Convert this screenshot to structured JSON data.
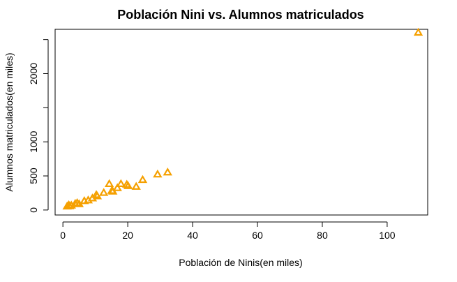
{
  "chart_data": {
    "type": "scatter",
    "title": "Población Nini vs. Alumnos matriculados",
    "xlabel": "Población de Ninis(en miles)",
    "ylabel": "Alumnos matriculados(en miles)",
    "xlim": [
      -2.4,
      112.5
    ],
    "ylim": [
      -73,
      2650
    ],
    "xticks": [
      0,
      20,
      40,
      60,
      80,
      100
    ],
    "xtick_labels": [
      "0",
      "20",
      "40",
      "60",
      "80",
      "100"
    ],
    "yticks": [
      0,
      500,
      1000,
      1500,
      2000,
      2500
    ],
    "ytick_labels": [
      "0",
      "500",
      "1000",
      "",
      "2000",
      ""
    ],
    "marker": "triangle-open",
    "grid": false,
    "legend": "none",
    "color": "#f5a000",
    "x": [
      1.3,
      1.8,
      2.1,
      2.6,
      3.8,
      4.4,
      5.0,
      6.6,
      7.8,
      9.1,
      10.3,
      10.6,
      12.6,
      14.3,
      15.1,
      15.4,
      16.8,
      17.9,
      19.7,
      20.1,
      22.6,
      24.6,
      29.2,
      32.3,
      109.6
    ],
    "y": [
      50,
      70,
      55,
      65,
      90,
      100,
      85,
      130,
      140,
      170,
      220,
      200,
      250,
      380,
      280,
      270,
      320,
      380,
      370,
      350,
      340,
      440,
      520,
      550,
      2600
    ]
  }
}
